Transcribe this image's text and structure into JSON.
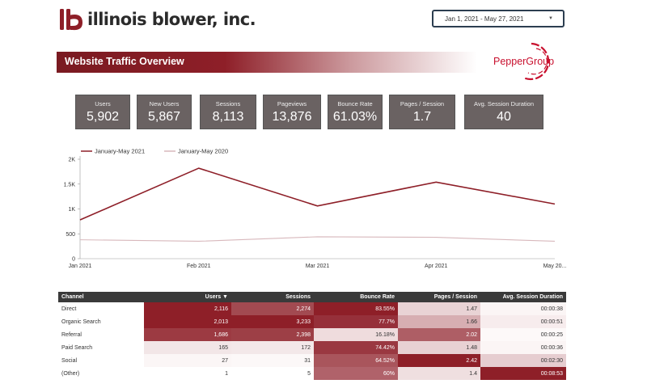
{
  "header": {
    "company": "illinois blower, inc.",
    "date_range": "Jan 1, 2021 - May 27, 2021",
    "report_title": "Website Traffic Overview",
    "partner_logo_text": "PepperGroup"
  },
  "kpis": [
    {
      "label": "Users",
      "value": "5,902"
    },
    {
      "label": "New Users",
      "value": "5,867"
    },
    {
      "label": "Sessions",
      "value": "8,113"
    },
    {
      "label": "Pageviews",
      "value": "13,876"
    },
    {
      "label": "Bounce Rate",
      "value": "61.03%"
    },
    {
      "label": "Pages / Session",
      "value": "1.7"
    },
    {
      "label": "Avg. Session Duration",
      "value": "40"
    }
  ],
  "chart_data": {
    "type": "line",
    "categories": [
      "Jan 2021",
      "Feb 2021",
      "Mar 2021",
      "Apr 2021",
      "May 20..."
    ],
    "series": [
      {
        "name": "January-May 2021",
        "values": [
          780,
          1820,
          1060,
          1540,
          1100
        ],
        "color": "#8e1f28"
      },
      {
        "name": "January-May 2020",
        "values": [
          380,
          350,
          440,
          430,
          350
        ],
        "color": "#d8b8bc"
      }
    ],
    "ylim": [
      0,
      2000
    ],
    "yticks": [
      0,
      500,
      1000,
      1500,
      2000
    ],
    "ytick_labels": [
      "0",
      "500",
      "1K",
      "1.5K",
      "2K"
    ],
    "legend": "top-left"
  },
  "table": {
    "headers": [
      "Channel",
      "Users ▼",
      "Sessions",
      "Bounce Rate",
      "Pages / Session",
      "Avg. Session Duration"
    ],
    "rows": [
      {
        "channel": "Direct",
        "users": "2,116",
        "sessions": "2,274",
        "bounce": "83.55%",
        "pps": "1.47",
        "dur": "00:00:38"
      },
      {
        "channel": "Organic Search",
        "users": "2,013",
        "sessions": "3,233",
        "bounce": "77.7%",
        "pps": "1.66",
        "dur": "00:00:51"
      },
      {
        "channel": "Referral",
        "users": "1,686",
        "sessions": "2,398",
        "bounce": "16.18%",
        "pps": "2.02",
        "dur": "00:00:25"
      },
      {
        "channel": "Paid Search",
        "users": "165",
        "sessions": "172",
        "bounce": "74.42%",
        "pps": "1.48",
        "dur": "00:00:36"
      },
      {
        "channel": "Social",
        "users": "27",
        "sessions": "31",
        "bounce": "64.52%",
        "pps": "2.42",
        "dur": "00:02:30"
      },
      {
        "channel": "(Other)",
        "users": "1",
        "sessions": "5",
        "bounce": "60%",
        "pps": "1.4",
        "dur": "00:08:53"
      }
    ],
    "cell_colors": {
      "users": [
        "#8e1f28",
        "#8e1f28",
        "#9c3a42",
        "#f2e6e7",
        "#fbf6f6",
        "#ffffff"
      ],
      "sessions": [
        "#a24a51",
        "#8e1f28",
        "#9d3f46",
        "#f3e8e9",
        "#fcf8f8",
        "#ffffff"
      ],
      "bounce": [
        "#8e1f28",
        "#96303a",
        "#efdcdd",
        "#9a3841",
        "#a9555c",
        "#b0626a"
      ],
      "pps": [
        "#e9d3d5",
        "#d7aeb2",
        "#ae5e65",
        "#e8d1d3",
        "#8e1f28",
        "#efdfe0"
      ],
      "dur": [
        "#fbf5f5",
        "#f7eced",
        "#fdf9f9",
        "#fbf5f5",
        "#e6cdd0",
        "#8e1f28"
      ]
    }
  }
}
